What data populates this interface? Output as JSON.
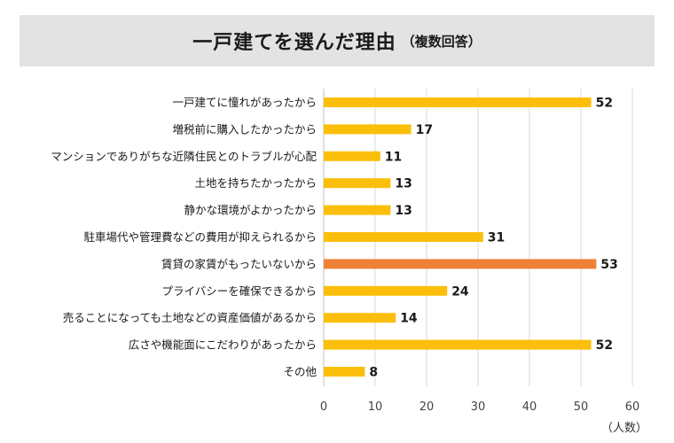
{
  "title": "一戸建てを選んだ理由",
  "subtitle": "（複数回答）",
  "unit_label": "（人数）",
  "colors": {
    "bar": "#fbbf0b",
    "highlight": "#ef8136",
    "grid": "#d9d9d9",
    "text": "#1a1a1a"
  },
  "chart_data": {
    "type": "bar",
    "orientation": "horizontal",
    "categories": [
      "一戸建てに憧れがあったから",
      "増税前に購入したかったから",
      "マンションでありがちな近隣住民とのトラブルが心配",
      "土地を持ちたかったから",
      "静かな環境がよかったから",
      "駐車場代や管理費などの費用が抑えられるから",
      "賃貸の家賃がもったいないから",
      "プライバシーを確保できるから",
      "売ることになっても土地などの資産価値があるから",
      "広さや機能面にこだわりがあったから",
      "その他"
    ],
    "values": [
      52,
      17,
      11,
      13,
      13,
      31,
      53,
      24,
      14,
      52,
      8
    ],
    "highlight_index": 6,
    "xlim": [
      0,
      60
    ],
    "xticks": [
      0,
      10,
      20,
      30,
      40,
      50,
      60
    ],
    "grid": true,
    "data_labels": true
  }
}
